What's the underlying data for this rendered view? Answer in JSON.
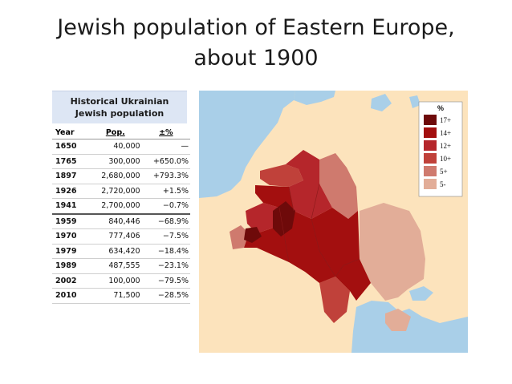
{
  "slide": {
    "title_line1": "Jewish population of Eastern Europe,",
    "title_line2": "about 1900"
  },
  "table": {
    "title_line1": "Historical Ukrainian",
    "title_line2": "Jewish population",
    "headers": [
      "Year",
      "Pop.",
      "±%"
    ],
    "rows": [
      {
        "year": "1650",
        "pop": "40,000",
        "change": "—"
      },
      {
        "year": "1765",
        "pop": "300,000",
        "change": "+650.0%"
      },
      {
        "year": "1897",
        "pop": "2,680,000",
        "change": "+793.3%"
      },
      {
        "year": "1926",
        "pop": "2,720,000",
        "change": "+1.5%"
      },
      {
        "year": "1941",
        "pop": "2,700,000",
        "change": "−0.7%"
      },
      {
        "year": "1959",
        "pop": "840,446",
        "change": "−68.9%"
      },
      {
        "year": "1970",
        "pop": "777,406",
        "change": "−7.5%"
      },
      {
        "year": "1979",
        "pop": "634,420",
        "change": "−18.4%"
      },
      {
        "year": "1989",
        "pop": "487,555",
        "change": "−23.1%"
      },
      {
        "year": "2002",
        "pop": "100,000",
        "change": "−79.5%"
      },
      {
        "year": "2010",
        "pop": "71,500",
        "change": "−28.5%"
      }
    ]
  },
  "legend": {
    "unit": "%",
    "items": [
      {
        "label": "17+",
        "color": "#6e0a0a"
      },
      {
        "label": "14+",
        "color": "#a30f0f"
      },
      {
        "label": "12+",
        "color": "#b5262b"
      },
      {
        "label": "10+",
        "color": "#c0413a"
      },
      {
        "label": "5+",
        "color": "#cf7a6e"
      },
      {
        "label": "5-",
        "color": "#e2ad98"
      }
    ]
  },
  "map": {
    "sea_color": "#a9cfe8",
    "land_color": "#fce3bc"
  }
}
